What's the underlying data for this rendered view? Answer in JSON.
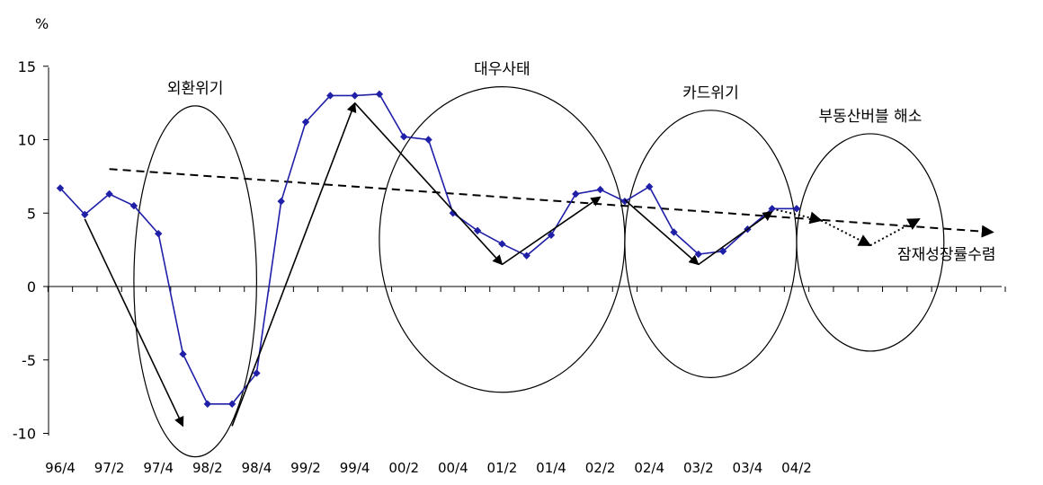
{
  "chart_data": {
    "type": "line",
    "ylabel": "%",
    "ylim": [
      -10,
      15
    ],
    "yticks": [
      15,
      10,
      5,
      0,
      -5,
      -10
    ],
    "grid": false,
    "x_categories": [
      "96/4",
      "97/1",
      "97/2",
      "97/3",
      "97/4",
      "98/1",
      "98/2",
      "98/3",
      "98/4",
      "99/1",
      "99/2",
      "99/3",
      "99/4",
      "00/1",
      "00/2",
      "00/3",
      "00/4",
      "01/1",
      "01/2",
      "01/3",
      "01/4",
      "02/1",
      "02/2",
      "02/3",
      "02/4",
      "03/1",
      "03/2",
      "03/3",
      "03/4",
      "04/1",
      "04/2",
      "04/3",
      "04/4",
      "05/1",
      "05/2",
      "05/3",
      "05/4",
      "06/1",
      "06/2"
    ],
    "x_tick_labels": [
      "96/4",
      "97/2",
      "97/4",
      "98/2",
      "98/4",
      "99/2",
      "99/4",
      "00/2",
      "00/4",
      "01/2",
      "01/4",
      "02/2",
      "02/4",
      "03/2",
      "03/4",
      "04/2"
    ],
    "series": [
      {
        "color": "#1f1fa8",
        "marker": "diamond",
        "values": [
          6.7,
          4.9,
          6.3,
          5.5,
          3.6,
          -4.6,
          -8.0,
          -8.0,
          -5.9,
          5.8,
          11.2,
          13.0,
          13.0,
          13.1,
          10.2,
          10.0,
          5.0,
          3.8,
          2.9,
          2.1,
          3.5,
          6.3,
          6.6,
          5.8,
          6.8,
          3.7,
          2.2,
          2.4,
          3.9,
          5.3,
          5.3
        ]
      }
    ],
    "trend_line": {
      "style": "dashed",
      "x": [
        "97/2",
        "06/2"
      ],
      "y": [
        8.0,
        3.7
      ]
    },
    "forecast_line": {
      "style": "dotted",
      "x": [
        "04/1",
        "04/3",
        "05/1",
        "05/3"
      ],
      "y": [
        5.3,
        4.5,
        2.8,
        4.6
      ]
    },
    "phase_arrows": [
      {
        "x": [
          "97/1",
          "98/1"
        ],
        "y": [
          4.6,
          -9.5
        ]
      },
      {
        "x": [
          "98/3",
          "99/4"
        ],
        "y": [
          -9.5,
          12.5
        ]
      },
      {
        "x": [
          "99/4",
          "01/2"
        ],
        "y": [
          12.5,
          1.5
        ]
      },
      {
        "x": [
          "01/2",
          "02/2"
        ],
        "y": [
          1.5,
          6.1
        ]
      },
      {
        "x": [
          "02/3",
          "03/2"
        ],
        "y": [
          5.9,
          1.5
        ]
      },
      {
        "x": [
          "03/2",
          "04/1"
        ],
        "y": [
          1.5,
          5.1
        ]
      }
    ],
    "annotations": [
      {
        "text": "외환위기",
        "x": [
          "97/3",
          "98/4"
        ],
        "y": [
          -11.6,
          12.3
        ]
      },
      {
        "text": "대우사태",
        "x": [
          "00/1",
          "02/3"
        ],
        "y": [
          -7.2,
          13.6
        ]
      },
      {
        "text": "카드위기",
        "x": [
          "02/3",
          "04/2"
        ],
        "y": [
          -6.2,
          12.0
        ]
      },
      {
        "text": "부동산버블 해소",
        "x": [
          "04/2",
          "05/4"
        ],
        "y": [
          -4.4,
          10.4
        ]
      }
    ],
    "end_label": "잠재성장률수렴"
  }
}
